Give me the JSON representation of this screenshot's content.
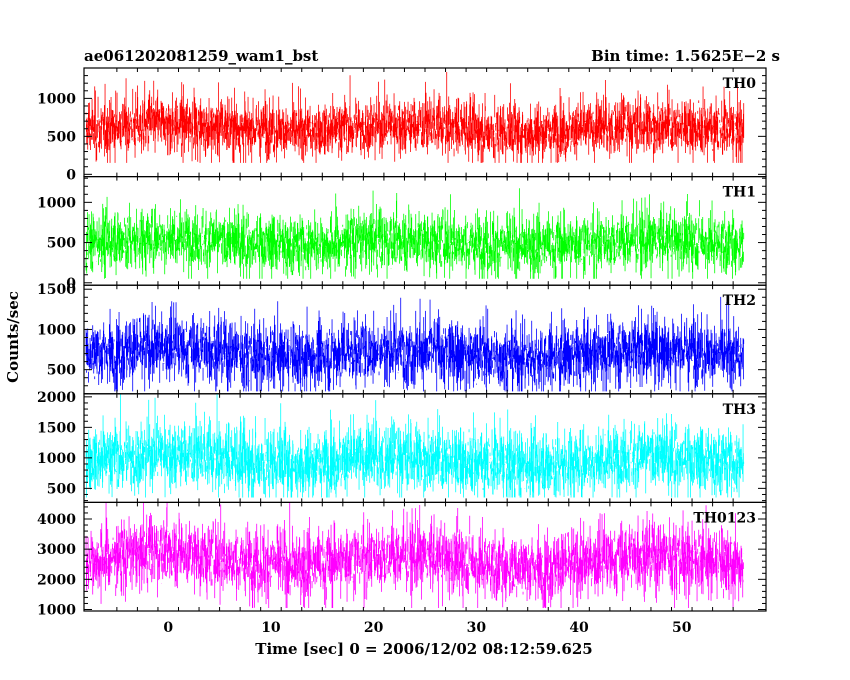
{
  "chart_data": {
    "type": "line",
    "title_left": "ae061202081259_wam1_bst",
    "title_right": "Bin time: 1.5625E−2 s",
    "xlabel": "Time [sec] 0 = 2006/12/02 08:12:59.625",
    "ylabel": "Counts/sec",
    "xlim": [
      -8.2,
      58.2
    ],
    "xticks": [
      0,
      10,
      20,
      30,
      40,
      50
    ],
    "x_range": [
      -8,
      56
    ],
    "grid": false,
    "panels": [
      {
        "name": "TH0",
        "color": "#ff0000",
        "ylim": [
          -30,
          1400
        ],
        "yticks": [
          0,
          500,
          1000
        ],
        "base": 600,
        "spread": 200,
        "low": 150,
        "high": 1400
      },
      {
        "name": "TH1",
        "color": "#00ff00",
        "ylim": [
          -30,
          1320
        ],
        "yticks": [
          0,
          500,
          1000
        ],
        "base": 500,
        "spread": 200,
        "low": 50,
        "high": 1320
      },
      {
        "name": "TH2",
        "color": "#0000ff",
        "ylim": [
          200,
          1550
        ],
        "yticks": [
          500,
          1000,
          1500
        ],
        "base": 700,
        "spread": 220,
        "low": 230,
        "high": 1550
      },
      {
        "name": "TH3",
        "color": "#00ffff",
        "ylim": [
          270,
          2050
        ],
        "yticks": [
          500,
          1000,
          1500,
          2000
        ],
        "base": 950,
        "spread": 300,
        "low": 350,
        "high": 2050
      },
      {
        "name": "TH0123",
        "color": "#ff00ff",
        "ylim": [
          950,
          4550
        ],
        "yticks": [
          1000,
          2000,
          3000,
          4000
        ],
        "base": 2600,
        "spread": 600,
        "low": 1050,
        "high": 4550
      }
    ]
  }
}
